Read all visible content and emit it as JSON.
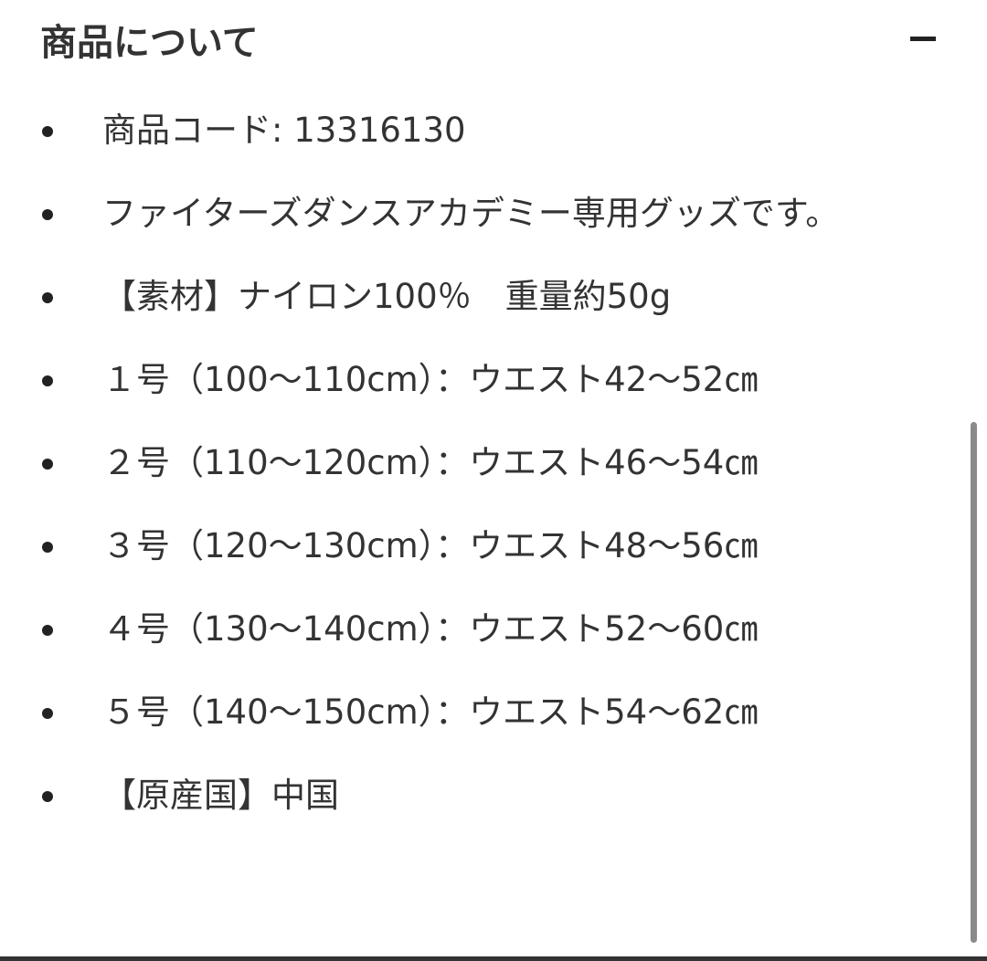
{
  "section": {
    "title": "商品について",
    "collapse_icon": "minus-icon"
  },
  "items": [
    {
      "text": "商品コード: 13316130"
    },
    {
      "text": "ファイターズダンスアカデミー専用グッズです。"
    },
    {
      "text": "【素材】ナイロン100％　重量約50g"
    },
    {
      "text": "１号（100〜110cm）：ウエスト42〜52㎝"
    },
    {
      "text": "２号（110〜120cm）：ウエスト46〜54㎝"
    },
    {
      "text": "３号（120〜130cm）：ウエスト48〜56㎝"
    },
    {
      "text": "４号（130〜140cm）：ウエスト52〜60㎝"
    },
    {
      "text": "５号（140〜150cm）：ウエスト54〜62㎝"
    },
    {
      "text": "【原産国】中国"
    }
  ]
}
